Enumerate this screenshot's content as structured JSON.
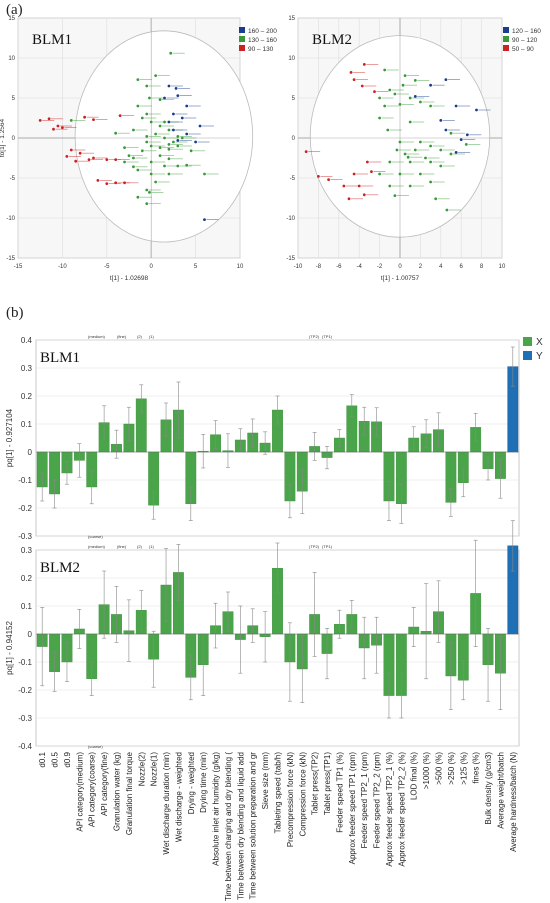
{
  "panel_labels": [
    "(a)",
    "(b)"
  ],
  "colors": {
    "red": "#cc2222",
    "green": "#3a9a3a",
    "blue": "#1a3d8f",
    "bar_x": "#4aa54a",
    "bar_y": "#1f6fb5",
    "ellipse": "#bbbbbb"
  },
  "chart_data": [
    {
      "type": "scatter",
      "title": "BLM1",
      "xlabel": "t[1] - 1.02698",
      "ylabel": "to[1] - 1.2564",
      "xlim": [
        -15,
        10
      ],
      "ylim": [
        -15,
        15
      ],
      "xticks": [
        -15,
        -10,
        -5,
        0,
        5,
        10
      ],
      "yticks": [
        -15,
        -10,
        -5,
        0,
        5,
        10,
        15
      ],
      "grid": true,
      "legend_position": "top-right",
      "legend": [
        {
          "label": "160 – 200",
          "color": "#1a3d8f"
        },
        {
          "label": "130 – 160",
          "color": "#3a9a3a"
        },
        {
          "label": "90 – 130",
          "color": "#cc2222"
        }
      ],
      "points": {
        "red": [
          [
            -12.5,
            2.2
          ],
          [
            -11.5,
            2.4
          ],
          [
            -10.5,
            1.5
          ],
          [
            -11,
            1.1
          ],
          [
            -10,
            1.3
          ],
          [
            -7.5,
            2.6
          ],
          [
            -6.5,
            2.3
          ],
          [
            -9,
            -1.5
          ],
          [
            -8,
            -1.9
          ],
          [
            -7,
            -2.7
          ],
          [
            -6.5,
            -2.5
          ],
          [
            -5,
            -2.7
          ],
          [
            -4,
            -2.7
          ],
          [
            -9.5,
            -2.3
          ],
          [
            -8.5,
            -2.9
          ],
          [
            -3.5,
            2.8
          ],
          [
            -6,
            -5.3
          ],
          [
            -5,
            -5.7
          ],
          [
            -4,
            -5.6
          ],
          [
            -3,
            -5.6
          ]
        ],
        "green": [
          [
            2.2,
            10.6
          ],
          [
            0.5,
            7.8
          ],
          [
            -1.5,
            7.3
          ],
          [
            -0.5,
            6.5
          ],
          [
            -0.2,
            5
          ],
          [
            1,
            4.8
          ],
          [
            -1.5,
            4
          ],
          [
            -0.5,
            3
          ],
          [
            -1,
            2.5
          ],
          [
            0,
            2
          ],
          [
            1,
            1.5
          ],
          [
            2,
            1
          ],
          [
            -2,
            1
          ],
          [
            0.5,
            0.5
          ],
          [
            1.5,
            0
          ],
          [
            2.5,
            -0.5
          ],
          [
            3.5,
            0
          ],
          [
            -0.5,
            -0.5
          ],
          [
            0,
            -1
          ],
          [
            1,
            -1.2
          ],
          [
            2,
            -1.4
          ],
          [
            3,
            -1
          ],
          [
            -1,
            -1.6
          ],
          [
            1,
            -2.2
          ],
          [
            2,
            -2.6
          ],
          [
            -2,
            -2.5
          ],
          [
            0,
            -3
          ],
          [
            1.5,
            -3.5
          ],
          [
            3,
            -3.5
          ],
          [
            -3,
            -3
          ],
          [
            -1.5,
            -4
          ],
          [
            0,
            -4.5
          ],
          [
            2,
            -4.5
          ],
          [
            0.5,
            -5.5
          ],
          [
            -0.5,
            -6.5
          ],
          [
            -0.5,
            -8.2
          ],
          [
            -2,
            -3.6
          ],
          [
            4,
            -3.4
          ],
          [
            -4,
            0.6
          ],
          [
            -9,
            2.2
          ],
          [
            -3,
            -1.2
          ],
          [
            -2.5,
            -2.2
          ],
          [
            2,
            -0.8
          ],
          [
            3,
            0.2
          ],
          [
            4.5,
            -1.6
          ],
          [
            6,
            -4.5
          ],
          [
            -0.5,
            0.2
          ],
          [
            1.5,
            2
          ],
          [
            -0.2,
            -6.8
          ],
          [
            -1.5,
            -7.4
          ]
        ],
        "blue": [
          [
            2,
            6.5
          ],
          [
            3,
            5.3
          ],
          [
            4,
            4
          ],
          [
            2.5,
            3
          ],
          [
            3.5,
            2.5
          ],
          [
            2,
            2
          ],
          [
            2.5,
            1
          ],
          [
            5.5,
            1.5
          ],
          [
            4,
            0.5
          ],
          [
            3,
            -0.3
          ],
          [
            5,
            -0.5
          ],
          [
            6,
            -10.2
          ],
          [
            1.5,
            5
          ],
          [
            2.8,
            6.2
          ]
        ]
      }
    },
    {
      "type": "scatter",
      "title": "BLM2",
      "xlabel": "t[1] - 1.00757",
      "ylim": [
        -15,
        15
      ],
      "xlim": [
        -10,
        10
      ],
      "xticks": [
        -10,
        -8,
        -6,
        -4,
        -2,
        0,
        2,
        4,
        6,
        8,
        10
      ],
      "yticks": [
        -15,
        -10,
        -5,
        0,
        5,
        10,
        15
      ],
      "grid": true,
      "legend_position": "top-right",
      "legend": [
        {
          "label": "120 – 160",
          "color": "#1a3d8f"
        },
        {
          "label": "90 – 120",
          "color": "#3a9a3a"
        },
        {
          "label": "50 – 90",
          "color": "#cc2222"
        }
      ],
      "points": {
        "red": [
          [
            -3.5,
            9.2
          ],
          [
            -4.8,
            8.2
          ],
          [
            -4.5,
            7.3
          ],
          [
            -3.7,
            6.5
          ],
          [
            -2.5,
            5.8
          ],
          [
            -9.2,
            -1.7
          ],
          [
            -8,
            -4.8
          ],
          [
            -7,
            -5.2
          ],
          [
            -4.5,
            -4.5
          ],
          [
            -5.5,
            -6
          ],
          [
            -4,
            -6
          ],
          [
            -5,
            -7.6
          ],
          [
            -3.5,
            -7.1
          ],
          [
            -3.2,
            -3
          ],
          [
            -2.8,
            -4.2
          ]
        ],
        "green": [
          [
            -1.5,
            8.5
          ],
          [
            0.5,
            7.8
          ],
          [
            1.5,
            7.2
          ],
          [
            0.3,
            6.6
          ],
          [
            -1,
            6
          ],
          [
            -2,
            5
          ],
          [
            -0.5,
            5.5
          ],
          [
            1,
            5
          ],
          [
            2,
            4.5
          ],
          [
            -1.5,
            4
          ],
          [
            0,
            4.2
          ],
          [
            3,
            4
          ],
          [
            -2,
            2.5
          ],
          [
            1,
            2
          ],
          [
            -1.2,
            1
          ],
          [
            0,
            -0.5
          ],
          [
            2,
            -0.5
          ],
          [
            3,
            -1
          ],
          [
            1.5,
            -1.5
          ],
          [
            4,
            -1.5
          ],
          [
            0.5,
            -2
          ],
          [
            2.5,
            -2.5
          ],
          [
            -1,
            -3
          ],
          [
            1,
            -3
          ],
          [
            3,
            -3
          ],
          [
            -2,
            -4.5
          ],
          [
            0,
            -4.5
          ],
          [
            2,
            -4.5
          ],
          [
            4,
            -3.5
          ],
          [
            -1,
            -6
          ],
          [
            1,
            -6
          ],
          [
            3,
            -5.5
          ],
          [
            -0.5,
            -7.2
          ],
          [
            3.5,
            -7.6
          ],
          [
            5,
            -2
          ],
          [
            5,
            0.6
          ],
          [
            6.5,
            -0.8
          ],
          [
            -0.3,
            -1.5
          ],
          [
            0.8,
            -2.4
          ],
          [
            4.6,
            -9
          ]
        ],
        "blue": [
          [
            4.5,
            7.3
          ],
          [
            3,
            6.6
          ],
          [
            5.5,
            4
          ],
          [
            7.5,
            3.5
          ],
          [
            1.5,
            5.2
          ],
          [
            4,
            2.2
          ],
          [
            4.5,
            1
          ],
          [
            6,
            -0.2
          ],
          [
            5.5,
            -1.8
          ],
          [
            6.6,
            0.4
          ]
        ]
      }
    },
    {
      "type": "bar",
      "title": "BLM1",
      "ylabel": "pq[1] - 0.927104",
      "ylim": [
        -0.3,
        0.4
      ],
      "yticks": [
        -0.3,
        -0.2,
        -0.1,
        0,
        0.1,
        0.2,
        0.3,
        0.4
      ],
      "legend": [
        {
          "label": "X",
          "color": "#4aa54a"
        },
        {
          "label": "Y",
          "color": "#1f6fb5"
        }
      ],
      "legend_position": "right",
      "top_annotations": [
        "(medium)",
        "(fine)",
        "(2)",
        "(1)",
        "(TP2)",
        "(TP1)"
      ],
      "values": [
        -0.125,
        -0.15,
        -0.075,
        -0.03,
        -0.125,
        0.105,
        0.028,
        0.1,
        0.19,
        -0.19,
        0.115,
        0.15,
        -0.185,
        0.003,
        0.062,
        0.005,
        0.043,
        0.068,
        0.032,
        0.15,
        -0.175,
        -0.14,
        0.02,
        -0.02,
        0.05,
        0.165,
        0.11,
        0.108,
        -0.175,
        -0.185,
        0.05,
        0.065,
        0.08,
        -0.18,
        -0.11,
        0.088,
        -0.06,
        -0.095,
        0.305
      ],
      "errors": [
        0.05,
        0.05,
        0.04,
        0.06,
        0.06,
        0.06,
        0.05,
        0.06,
        0.05,
        0.05,
        0.06,
        0.1,
        0.06,
        0.06,
        0.05,
        0.06,
        0.04,
        0.05,
        0.04,
        0.05,
        0.06,
        0.08,
        0.05,
        0.04,
        0.03,
        0.04,
        0.05,
        0.05,
        0.07,
        0.07,
        0.04,
        0.05,
        0.06,
        0.05,
        0.05,
        0.05,
        0.04,
        0.07,
        0.07
      ],
      "series_colors": "last bar Y, others X"
    },
    {
      "type": "bar",
      "title": "BLM2",
      "ylabel": "pq[1] - 0.94152",
      "ylim": [
        -0.4,
        0.3
      ],
      "yticks": [
        -0.4,
        -0.3,
        -0.2,
        -0.1,
        0,
        0.1,
        0.2,
        0.3
      ],
      "top_annotations": [
        "(coarse)",
        "(medium)",
        "(fine)",
        "(2)",
        "(1)",
        "(TP2)",
        "(TP1)"
      ],
      "categories": [
        "d0.1",
        "d0.5",
        "d0.9",
        "API category(medium)",
        "API category(coarse)",
        "API category(fine)",
        "Granulation water (kg)",
        "Granulation final torque",
        "Nozzle(2)",
        "Nozzle(1)",
        "Wet discharge duration (min)",
        "Wet discharge - weighted",
        "Drying - weighted",
        "Drying time (min)",
        "Absolute inlet air humidity (g/kg)",
        "Time between charging and dry blending (",
        "Time between dry blending and liquid add",
        "Time between solution preparation and gr",
        "Sieve size (mm)",
        "Tableting speed (tab/h)",
        "Precompression force (kN)",
        "Compression force (kN)",
        "Tablet press(TP2)",
        "Tablet press(TP1)",
        "Feeder speed TP1 (%)",
        "Approx feeder speed TP1 (rpm)",
        "Feeder speed TP2_1 (rpm)",
        "Feeder speed TP2_2 (rpm)",
        "Approx feeder speed TP2_1 (%)",
        "Approx feeder speed TP2_2 (%)",
        "LOD final (%)",
        ">1000 (%)",
        ">500 (%)",
        ">250 (%)",
        ">125 (%)",
        "fines (%)",
        "Bulk density (g/cm3)",
        "Average weight/batch",
        "Average hardness/batch (N)"
      ],
      "values": [
        -0.045,
        -0.135,
        -0.1,
        0.018,
        -0.16,
        0.105,
        0.07,
        0.012,
        0.085,
        -0.09,
        0.175,
        0.22,
        -0.155,
        -0.11,
        0.03,
        0.08,
        -0.02,
        0.03,
        -0.01,
        0.235,
        -0.1,
        -0.125,
        0.07,
        -0.07,
        0.035,
        0.07,
        -0.05,
        -0.04,
        -0.22,
        -0.22,
        0.025,
        0.01,
        0.08,
        -0.15,
        -0.165,
        0.145,
        -0.11,
        -0.14,
        0.315
      ],
      "errors": [
        0.14,
        0.07,
        0.07,
        0.07,
        0.06,
        0.12,
        0.1,
        0.11,
        0.07,
        0.1,
        0.13,
        0.1,
        0.08,
        0.11,
        0.08,
        0.07,
        0.12,
        0.06,
        0.09,
        0.09,
        0.14,
        0.12,
        0.15,
        0.09,
        0.05,
        0.05,
        0.11,
        0.1,
        0.08,
        0.08,
        0.07,
        0.17,
        0.11,
        0.12,
        0.07,
        0.19,
        0.13,
        0.13,
        0.09
      ]
    }
  ]
}
